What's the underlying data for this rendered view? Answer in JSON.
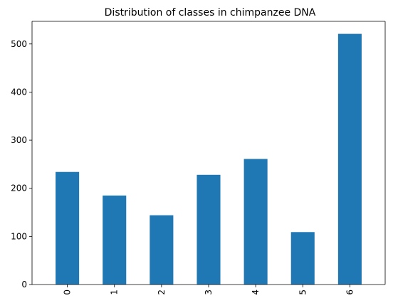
{
  "chart_data": {
    "type": "bar",
    "title": "Distribution of classes in chimpanzee DNA",
    "xlabel": "",
    "ylabel": "",
    "categories": [
      "0",
      "1",
      "2",
      "3",
      "4",
      "5",
      "6"
    ],
    "values": [
      234,
      185,
      144,
      228,
      261,
      109,
      521
    ],
    "ylim": [
      0,
      547
    ],
    "yticks": [
      0,
      100,
      200,
      300,
      400,
      500
    ],
    "grid": false,
    "legend": "none",
    "bar_color": "#1f77b4",
    "x_tick_rotation": "vertical"
  }
}
